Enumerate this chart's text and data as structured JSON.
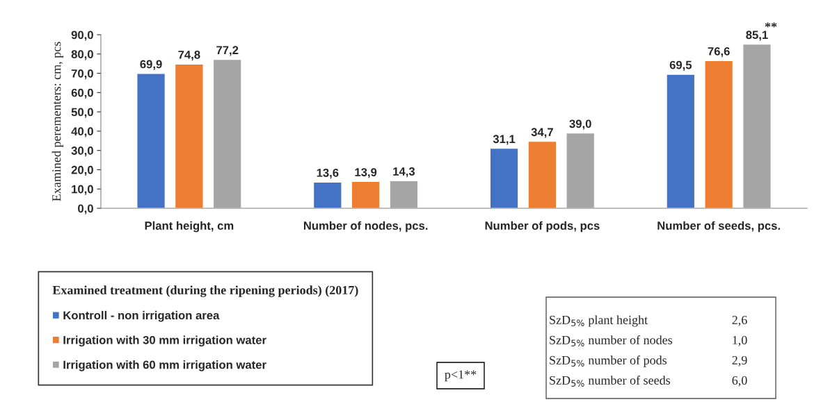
{
  "chart_data": {
    "type": "bar",
    "ylabel": "Examined perementers: cm, pcs",
    "legend_title": "Examined treatment (during the ripening periods) (2017)",
    "categories": [
      "Plant height, cm",
      "Number of nodes, pcs.",
      "Number of pods, pcs",
      "Number of seeds, pcs."
    ],
    "series": [
      {
        "name": "Kontroll - non irrigation area",
        "color": "#4472c4",
        "values": [
          69.9,
          13.6,
          31.1,
          69.5
        ],
        "value_labels": [
          "69,9",
          "13,6",
          "31,1",
          "69,5"
        ]
      },
      {
        "name": "Irrigation with 30 mm irrigation water",
        "color": "#ed7d31",
        "values": [
          74.8,
          13.9,
          34.7,
          76.6
        ],
        "value_labels": [
          "74,8",
          "13,9",
          "34,7",
          "76,6"
        ]
      },
      {
        "name": "Irrigation with 60 mm irrigation water",
        "color": "#a5a5a5",
        "values": [
          77.2,
          14.3,
          39.0,
          85.1
        ],
        "value_labels": [
          "77,2",
          "14,3",
          "39,0",
          "85,1"
        ]
      }
    ],
    "ylim": [
      0,
      90
    ],
    "yticks": [
      {
        "value": 0,
        "label": "0,0"
      },
      {
        "value": 10,
        "label": "10,0"
      },
      {
        "value": 20,
        "label": "20,0"
      },
      {
        "value": 30,
        "label": "30,0"
      },
      {
        "value": 40,
        "label": "40,0"
      },
      {
        "value": 50,
        "label": "50,0"
      },
      {
        "value": 60,
        "label": "60,0"
      },
      {
        "value": 70,
        "label": "70,0"
      },
      {
        "value": 80,
        "label": "80,0"
      },
      {
        "value": 90,
        "label": "90,0"
      }
    ],
    "grid": false,
    "legend": "bottom left",
    "annotations": [
      "**",
      "p<1**",
      "SzD$_{5%}$ plant height",
      "2,6",
      "SzD$_{5%}$ number of nodes",
      "1,0",
      "SzD$_{5%}$ number of pods",
      "2,9",
      "SzD$_{5%}$ number of seeds",
      "6,0"
    ]
  }
}
